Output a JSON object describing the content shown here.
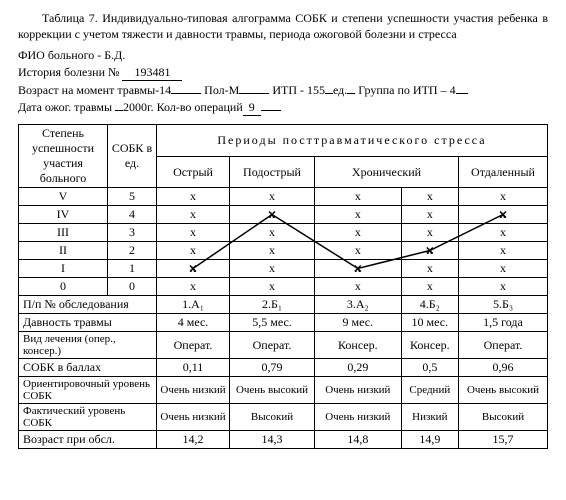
{
  "caption": "Таблица 7. Индивидуально-типовая алгограмма СОБК и степени успешности участия ребенка в коррекции с учетом тяжести и давности травмы, периода ожоговой болезни и стресса",
  "meta": {
    "fio_label": "ФИО больного - Б.Д.",
    "history_label": "История болезни №",
    "history_no": "193481",
    "age_label": "Возраст на момент травмы-14",
    "sex_label": "Пол-М",
    "itp_label": "ИТП - 155",
    "itp_unit": "ед.",
    "group_label": "Группа по ИТП – 4",
    "date_label": "Дата ожог. травмы",
    "date_val": "2000г.",
    "ops_label": "Кол-во операций",
    "ops_val": "9"
  },
  "headers": {
    "uspeh": "Степень успешности участия больного",
    "sobk": "СОБК в ед.",
    "periods_title": "Периоды посттравматического стресса",
    "periods": [
      "Острый",
      "Подострый",
      "Хронический",
      "Отдаленный"
    ]
  },
  "levels": [
    {
      "r": "V",
      "s": "5"
    },
    {
      "r": "IV",
      "s": "4"
    },
    {
      "r": "III",
      "s": "3"
    },
    {
      "r": "II",
      "s": "2"
    },
    {
      "r": "I",
      "s": "1"
    },
    {
      "r": "0",
      "s": "0"
    }
  ],
  "rows": {
    "obs_label": "П/п № обследования",
    "obs": [
      "1.А₁",
      "2.Б₁",
      "3.А₂",
      "4.Б₂",
      "5.Б₃"
    ],
    "davnost_label": "Давность травмы",
    "davnost": [
      "4 мес.",
      "5,5 мес.",
      "9 мес.",
      "10 мес.",
      "1,5 года"
    ],
    "vid_label": "Вид лечения (опер., консер.)",
    "vid": [
      "Операт.",
      "Операт.",
      "Консер.",
      "Консер.",
      "Операт."
    ],
    "ball_label": "СОБК в баллах",
    "ball": [
      "0,11",
      "0,79",
      "0,29",
      "0,5",
      "0,96"
    ],
    "orient_label": "Ориентировочный уровень СОБК",
    "orient": [
      "Очень низкий",
      "Очень высокий",
      "Очень низкий",
      "Средний",
      "Очень высокий"
    ],
    "fakt_label": "Фактический уровень СОБК",
    "fakt": [
      "Очень низкий",
      "Высокий",
      "Очень низкий",
      "Низкий",
      "Высокий"
    ],
    "vozr_label": "Возраст при обсл.",
    "vozr": [
      "14,2",
      "14,3",
      "14,8",
      "14,9",
      "15,7"
    ]
  },
  "chart": {
    "x_cols": [
      0,
      1,
      2,
      3,
      4
    ],
    "y_rows": [
      4,
      1,
      4,
      3,
      1
    ],
    "stroke": "#000",
    "width": 1.5
  }
}
